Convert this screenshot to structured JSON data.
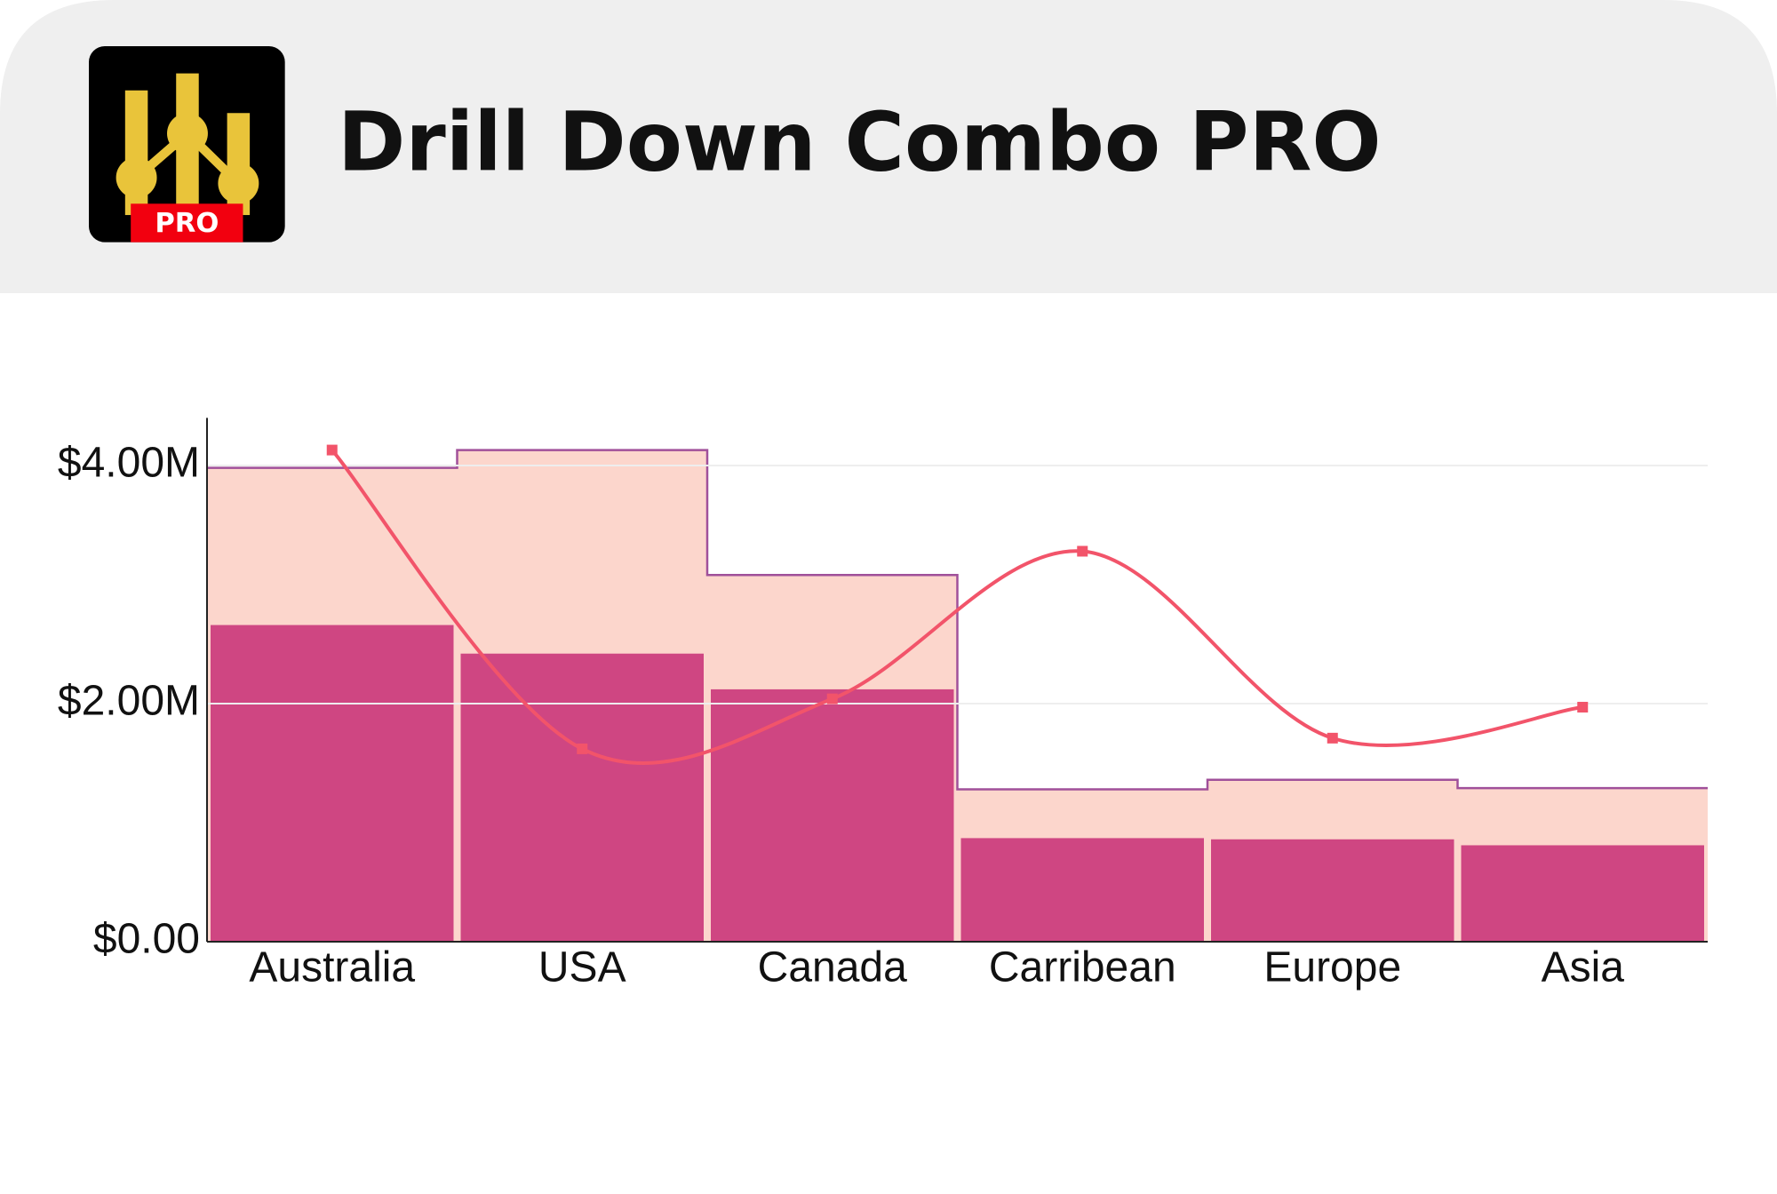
{
  "header": {
    "title": "Drill Down Combo PRO",
    "icon_badge": "PRO"
  },
  "chart_data": {
    "type": "combo",
    "categories": [
      "Australia",
      "USA",
      "Canada",
      "Carribean",
      "Europe",
      "Asia"
    ],
    "series": [
      {
        "kind": "step-area",
        "color": "#fcd6cc",
        "values": [
          3980000,
          4130000,
          3080000,
          1280000,
          1360000,
          1290000
        ]
      },
      {
        "kind": "bar",
        "color": "#cf4682",
        "values": [
          2660000,
          2420000,
          2120000,
          870000,
          860000,
          810000
        ]
      },
      {
        "kind": "line",
        "color": "#f2546a",
        "values": [
          4130000,
          1620000,
          2040000,
          3280000,
          1710000,
          1970000
        ]
      }
    ],
    "area_outline_color": "#a0509a",
    "ylim": [
      0,
      4400000
    ],
    "yticks": [
      {
        "value": 0,
        "label": "$0.00"
      },
      {
        "value": 2000000,
        "label": "$2.00M"
      },
      {
        "value": 4000000,
        "label": "$4.00M"
      }
    ],
    "grid": true
  }
}
